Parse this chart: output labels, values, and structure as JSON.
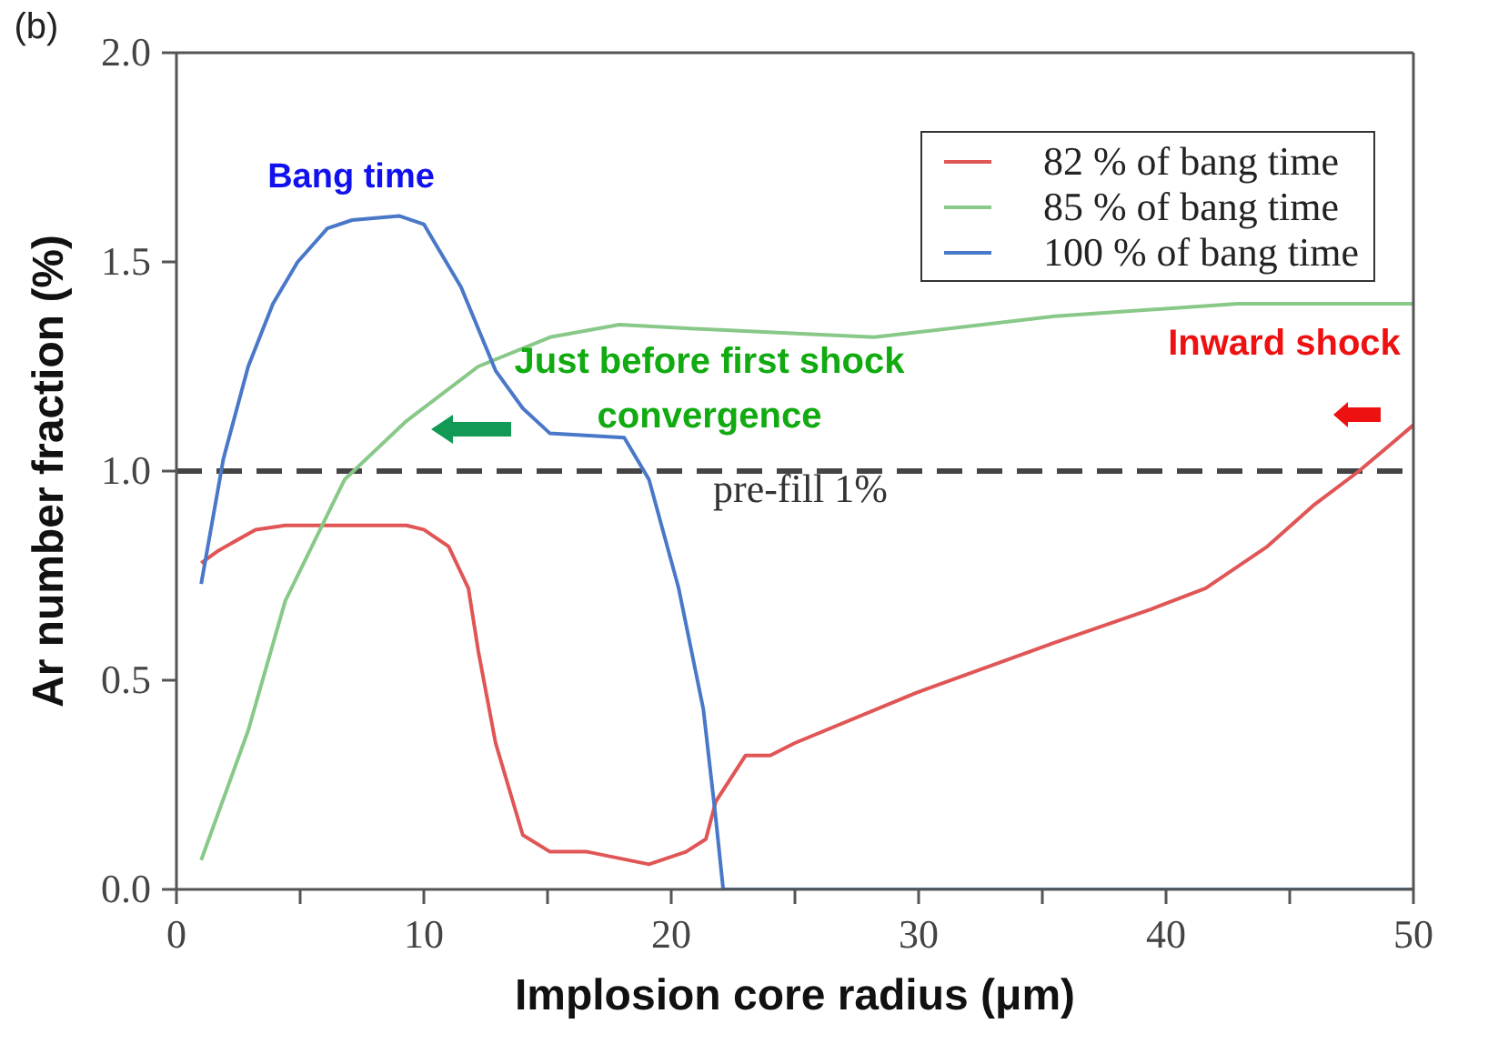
{
  "chart_data": {
    "type": "line",
    "xlabel": "Implosion core radius (μm)",
    "ylabel": "Ar number fraction (%)",
    "xlim": [
      0,
      50
    ],
    "xticks": [
      0,
      {
        "value": 5,
        "label": null
      },
      10,
      {
        "value": 15,
        "label": null
      },
      20,
      {
        "value": 25,
        "label": null
      },
      30,
      {
        "value": 35,
        "label": null
      },
      40,
      {
        "value": 45,
        "label": null
      },
      50
    ],
    "ylim": [
      0,
      2
    ],
    "yticks": [
      {
        "value": 0,
        "label": "0.0"
      },
      {
        "value": 0.5,
        "label": "0.5"
      },
      {
        "value": 1,
        "label": "1.0"
      },
      {
        "value": 1.5,
        "label": "1.5"
      },
      {
        "value": 2,
        "label": "2.0"
      }
    ],
    "grid": false,
    "legend": "top right",
    "marker": "none",
    "line_style": "solid",
    "series": [
      {
        "name": "82 % of bang time",
        "color": "#e05555",
        "x": [
          1,
          1.7,
          3.2,
          4.4,
          9.3,
          10,
          11,
          11.8,
          12.2,
          12.9,
          14,
          15.1,
          16.6,
          19.1,
          20.6,
          21.4,
          21.8,
          23,
          24,
          25,
          29.9,
          35.5,
          39.4,
          41.6,
          44.1,
          46,
          47.8,
          50
        ],
        "values": [
          0.78,
          0.81,
          0.86,
          0.87,
          0.87,
          0.86,
          0.82,
          0.72,
          0.57,
          0.35,
          0.13,
          0.09,
          0.09,
          0.06,
          0.09,
          0.12,
          0.21,
          0.32,
          0.32,
          0.35,
          0.47,
          0.59,
          0.67,
          0.72,
          0.82,
          0.92,
          1.0,
          1.11
        ]
      },
      {
        "name": "85 % of bang time",
        "color": "#88c888",
        "x": [
          1,
          2.9,
          4.4,
          6.8,
          9.3,
          12.2,
          15.1,
          17.9,
          21,
          28.2,
          35.5,
          42.9,
          50
        ],
        "values": [
          0.07,
          0.38,
          0.69,
          0.98,
          1.12,
          1.25,
          1.32,
          1.35,
          1.34,
          1.32,
          1.37,
          1.4,
          1.4
        ]
      },
      {
        "name": "100 % of bang time",
        "color": "#4a78c8",
        "x": [
          1,
          1.9,
          2.9,
          3.9,
          4.9,
          6.1,
          7.1,
          9,
          10,
          11.5,
          12.9,
          14,
          15.1,
          18.1,
          19.1,
          20.3,
          21.3,
          21.8,
          22.1,
          50
        ],
        "values": [
          0.73,
          1.03,
          1.25,
          1.4,
          1.5,
          1.58,
          1.6,
          1.61,
          1.59,
          1.44,
          1.24,
          1.15,
          1.09,
          1.08,
          0.98,
          0.72,
          0.43,
          0.17,
          0,
          0
        ]
      }
    ],
    "ref_lines": [
      {
        "axis": "y",
        "value": 1,
        "label": "pre-fill 1%",
        "color": "#444444",
        "line_style": "dashed"
      }
    ],
    "annotations": [
      "Inward shock",
      "Just before first shock convergence",
      "Bang time",
      "(b)"
    ]
  }
}
